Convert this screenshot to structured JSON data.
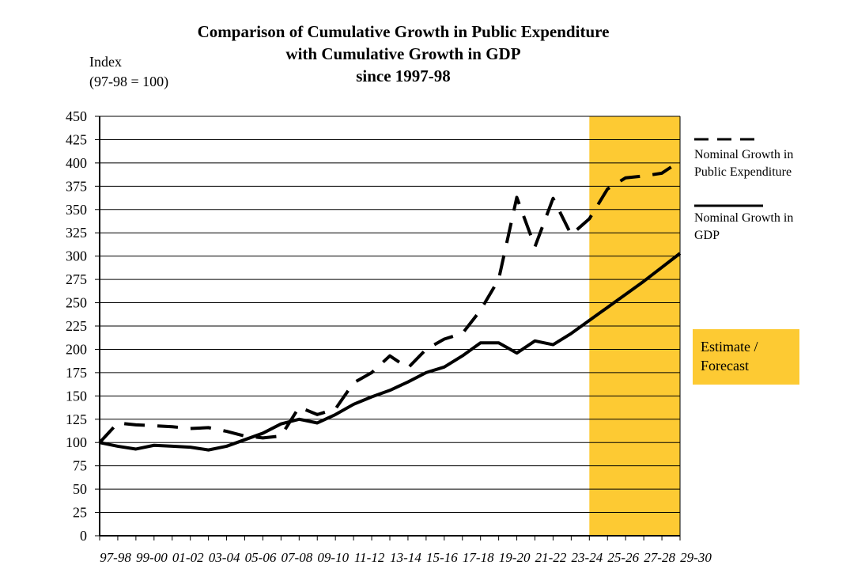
{
  "chart_data": {
    "type": "line",
    "title": [
      "Comparison of Cumulative Growth in Public Expenditure",
      "with Cumulative Growth in GDP",
      "since 1997-98"
    ],
    "ylabel": [
      "Index",
      "(97-98 = 100)"
    ],
    "xlabel": "",
    "ylim": [
      0,
      450
    ],
    "ytick_step": 25,
    "grid": true,
    "categories": [
      "97-98",
      "98-99",
      "99-00",
      "00-01",
      "01-02",
      "02-03",
      "03-04",
      "04-05",
      "05-06",
      "06-07",
      "07-08",
      "08-09",
      "09-10",
      "10-11",
      "11-12",
      "12-13",
      "13-14",
      "14-15",
      "15-16",
      "16-17",
      "17-18",
      "18-19",
      "19-20",
      "20-21",
      "21-22",
      "22-23",
      "23-24",
      "24-25",
      "25-26",
      "26-27",
      "27-28",
      "28-29",
      "29-30"
    ],
    "xtick_labels": [
      "97-98",
      "99-00",
      "01-02",
      "03-04",
      "05-06",
      "07-08",
      "09-10",
      "11-12",
      "13-14",
      "15-16",
      "17-18",
      "19-20",
      "21-22",
      "23-24",
      "25-26",
      "27-28",
      "29-30"
    ],
    "series": [
      {
        "name": "Nominal Growth in Public Expenditure",
        "style": "dashed",
        "values": [
          100,
          121,
          119,
          118,
          117,
          115,
          116,
          112,
          107,
          105,
          107,
          138,
          130,
          136,
          164,
          175,
          193,
          180,
          200,
          211,
          217,
          242,
          275,
          363,
          310,
          362,
          323,
          340,
          372,
          384,
          386,
          389,
          402
        ]
      },
      {
        "name": "Nominal Growth in GDP",
        "style": "solid",
        "values": [
          100,
          96,
          93,
          97,
          96,
          95,
          92,
          96,
          103,
          110,
          120,
          125,
          121,
          130,
          141,
          149,
          156,
          165,
          175,
          181,
          193,
          207,
          207,
          196,
          209,
          205,
          217,
          231,
          245,
          259,
          273,
          288,
          303
        ]
      }
    ],
    "shaded_region": {
      "from": "24-25",
      "to": "29-30",
      "label": "Estimate / Forecast",
      "color": "#fdca33"
    },
    "legend_position": "right"
  },
  "legend": {
    "expenditure": [
      "Nominal Growth in",
      "Public Expenditure"
    ],
    "gdp": [
      "Nominal Growth in",
      "GDP"
    ],
    "estimate": [
      "Estimate /",
      "Forecast"
    ]
  }
}
